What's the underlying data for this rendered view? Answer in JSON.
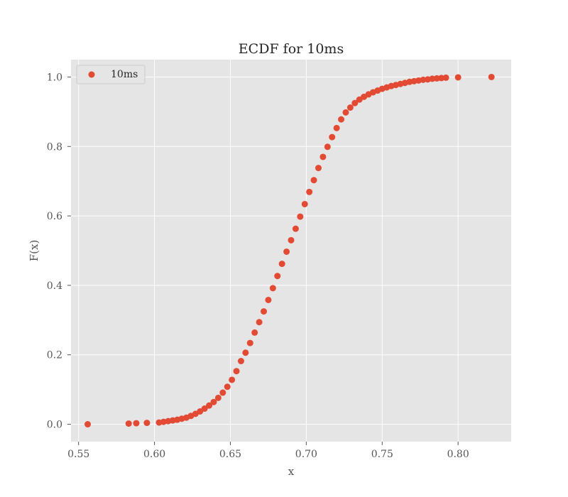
{
  "chart_data": {
    "type": "scatter",
    "title": "ECDF for 10ms",
    "xlabel": "x",
    "ylabel": "F(x)",
    "xlim": [
      0.545,
      0.835
    ],
    "ylim": [
      -0.05,
      1.05
    ],
    "xticks": [
      0.55,
      0.6,
      0.65,
      0.7,
      0.75,
      0.8
    ],
    "xtick_labels": [
      "0.55",
      "0.60",
      "0.65",
      "0.70",
      "0.75",
      "0.80"
    ],
    "yticks": [
      0.0,
      0.2,
      0.4,
      0.6,
      0.8,
      1.0
    ],
    "ytick_labels": [
      "0.0",
      "0.2",
      "0.4",
      "0.6",
      "0.8",
      "1.0"
    ],
    "grid": true,
    "legend_position": "top-left",
    "colors": {
      "series": "#E24A33",
      "plot_background": "#E5E5E5",
      "grid": "#FFFFFF"
    },
    "series": [
      {
        "name": "10ms",
        "x": [
          0.556,
          0.583,
          0.588,
          0.595,
          0.603,
          0.606,
          0.609,
          0.612,
          0.615,
          0.618,
          0.621,
          0.624,
          0.627,
          0.63,
          0.633,
          0.636,
          0.639,
          0.642,
          0.645,
          0.648,
          0.651,
          0.654,
          0.657,
          0.66,
          0.663,
          0.666,
          0.669,
          0.672,
          0.675,
          0.678,
          0.681,
          0.684,
          0.687,
          0.69,
          0.693,
          0.696,
          0.699,
          0.702,
          0.705,
          0.708,
          0.711,
          0.714,
          0.717,
          0.72,
          0.723,
          0.726,
          0.729,
          0.732,
          0.735,
          0.738,
          0.741,
          0.744,
          0.747,
          0.75,
          0.753,
          0.756,
          0.759,
          0.762,
          0.765,
          0.768,
          0.771,
          0.774,
          0.777,
          0.78,
          0.783,
          0.786,
          0.789,
          0.792,
          0.8,
          0.822
        ],
        "y": [
          0.0,
          0.002,
          0.003,
          0.004,
          0.005,
          0.007,
          0.009,
          0.011,
          0.013,
          0.016,
          0.019,
          0.024,
          0.03,
          0.037,
          0.045,
          0.054,
          0.064,
          0.076,
          0.091,
          0.108,
          0.128,
          0.153,
          0.182,
          0.206,
          0.234,
          0.264,
          0.294,
          0.325,
          0.358,
          0.392,
          0.427,
          0.462,
          0.497,
          0.53,
          0.563,
          0.598,
          0.634,
          0.669,
          0.703,
          0.738,
          0.77,
          0.799,
          0.827,
          0.853,
          0.878,
          0.898,
          0.912,
          0.925,
          0.935,
          0.943,
          0.95,
          0.956,
          0.961,
          0.966,
          0.97,
          0.974,
          0.977,
          0.98,
          0.983,
          0.986,
          0.988,
          0.99,
          0.992,
          0.993,
          0.995,
          0.996,
          0.997,
          0.998,
          0.999,
          1.0
        ]
      }
    ]
  }
}
